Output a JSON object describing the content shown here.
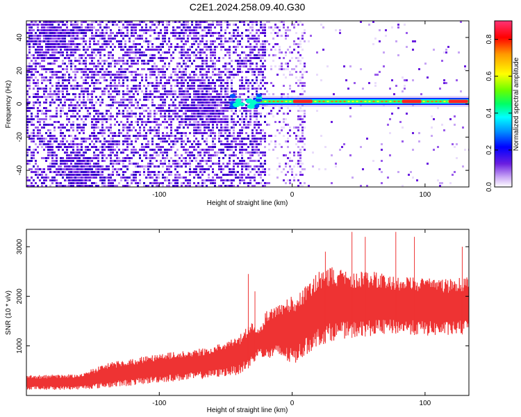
{
  "title": "C2E1.2024.258.09.40.G30",
  "chart_data": [
    {
      "type": "heatmap",
      "xlabel": "Height of straight line (km)",
      "ylabel": "Frequency (Hz)",
      "xlim": [
        -200,
        133
      ],
      "ylim": [
        -50,
        50
      ],
      "x_ticks": [
        -100,
        0,
        100
      ],
      "y_ticks": [
        -40,
        -20,
        0,
        20,
        40
      ],
      "colorbar": {
        "label": "Normalized spectral amplitude",
        "range": [
          0,
          0.9
        ],
        "ticks": [
          0.0,
          0.2,
          0.4,
          0.6,
          0.8
        ],
        "tick_labels": [
          "0.0",
          "0.2",
          "0.4",
          "0.6",
          "0.8"
        ],
        "colormap": [
          "#ffffff",
          "#b78cf2",
          "#6a1ee0",
          "#3c00d8",
          "#0000ff",
          "#0099ff",
          "#00ffff",
          "#00ff66",
          "#66ff00",
          "#ffff00",
          "#ff9900",
          "#ff0000",
          "#ff2b6e"
        ]
      },
      "features": {
        "noise_region_x": [
          -200,
          -20
        ],
        "strong_noise_patches": [
          {
            "x": -180,
            "y": 40
          },
          {
            "x": -160,
            "y": -40
          },
          {
            "x": -65,
            "y": 0
          }
        ],
        "signal_ridge": {
          "x_start": -45,
          "x_end": 133,
          "frequency": 1.5,
          "peak_x": [
            8,
            90,
            125
          ]
        }
      }
    },
    {
      "type": "line",
      "xlabel": "Height of straight line (km)",
      "ylabel": "SNR (10 * v/v)",
      "xlim": [
        -200,
        133
      ],
      "ylim": [
        0,
        3350
      ],
      "x_ticks": [
        -100,
        0,
        100
      ],
      "y_ticks": [
        1000,
        2000,
        3000
      ],
      "series_color": "#ee3333",
      "envelope": {
        "x": [
          -200,
          -180,
          -160,
          -140,
          -120,
          -100,
          -80,
          -60,
          -40,
          -30,
          -25,
          -20,
          -10,
          0,
          10,
          20,
          30,
          40,
          60,
          80,
          100,
          120,
          133
        ],
        "lower": [
          120,
          110,
          120,
          150,
          200,
          260,
          300,
          350,
          420,
          600,
          850,
          700,
          750,
          600,
          800,
          1000,
          1100,
          1150,
          1200,
          1250,
          1200,
          1200,
          1250
        ],
        "upper": [
          400,
          420,
          430,
          650,
          750,
          850,
          900,
          1000,
          1200,
          1500,
          1300,
          1700,
          1900,
          2000,
          2200,
          2500,
          2600,
          2500,
          2500,
          2400,
          2400,
          2350,
          2400
        ]
      },
      "spikes": [
        {
          "x": -33,
          "y": 2450
        },
        {
          "x": -28,
          "y": 2100
        },
        {
          "x": 25,
          "y": 2900
        },
        {
          "x": 45,
          "y": 3300
        },
        {
          "x": 55,
          "y": 3200
        },
        {
          "x": 78,
          "y": 3300
        },
        {
          "x": 92,
          "y": 3200
        },
        {
          "x": 128,
          "y": 3000
        }
      ]
    }
  ]
}
